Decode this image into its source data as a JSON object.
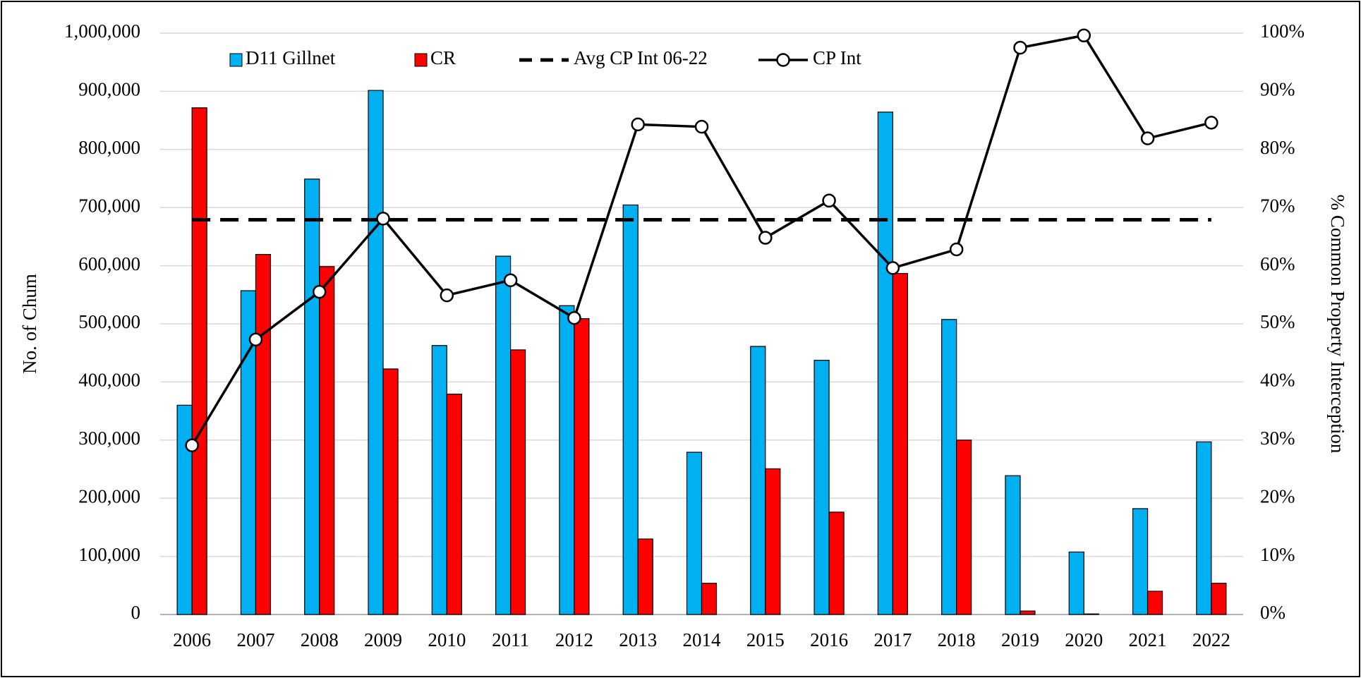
{
  "chart_data": {
    "type": "bar_line",
    "categories": [
      "2006",
      "2007",
      "2008",
      "2009",
      "2010",
      "2011",
      "2012",
      "2013",
      "2014",
      "2015",
      "2016",
      "2017",
      "2018",
      "2019",
      "2020",
      "2021",
      "2022"
    ],
    "ylabel": "No. of Chum",
    "y2label": "% Common Property Interception",
    "ylim": [
      0,
      1000000
    ],
    "yticks": [
      0,
      {
        "value": 100000,
        "label": "100,000"
      },
      {
        "value": 200000,
        "label": "200,000"
      },
      {
        "value": 300000,
        "label": "300,000"
      },
      {
        "value": 400000,
        "label": "400,000"
      },
      {
        "value": 500000,
        "label": "500,000"
      },
      {
        "value": 600000,
        "label": "600,000"
      },
      {
        "value": 700000,
        "label": "700,000"
      },
      {
        "value": 800000,
        "label": "800,000"
      },
      {
        "value": 900000,
        "label": "900,000"
      },
      {
        "value": 1000000,
        "label": "1,000,000"
      }
    ],
    "y2lim": [
      0,
      100
    ],
    "y2ticks": [
      {
        "value": 0,
        "label": "0%"
      },
      {
        "value": 10,
        "label": "10%"
      },
      {
        "value": 20,
        "label": "20%"
      },
      {
        "value": 30,
        "label": "30%"
      },
      {
        "value": 40,
        "label": "40%"
      },
      {
        "value": 50,
        "label": "50%"
      },
      {
        "value": 60,
        "label": "60%"
      },
      {
        "value": 70,
        "label": "70%"
      },
      {
        "value": 80,
        "label": "80%"
      },
      {
        "value": 90,
        "label": "90%"
      },
      {
        "value": 100,
        "label": "100%"
      }
    ],
    "grid": true,
    "series": [
      {
        "name": "D11 Gillnet",
        "kind": "bar",
        "color": "#00b0f0",
        "values": [
          360000,
          557000,
          749000,
          901500,
          462700,
          616400,
          531300,
          704500,
          279100,
          461200,
          437300,
          864200,
          507500,
          238800,
          107500,
          182100,
          297000
        ]
      },
      {
        "name": "CR",
        "kind": "bar",
        "color": "#ff0000",
        "values": [
          871600,
          619400,
          598500,
          422400,
          379100,
          455200,
          509000,
          129900,
          53700,
          250700,
          176100,
          586600,
          300000,
          6000,
          1000,
          40000,
          53700
        ]
      },
      {
        "name": "Avg CP Int 06-22",
        "kind": "dashed",
        "axis": "y2",
        "color": "#000000",
        "values": [
          67.9,
          67.9,
          67.9,
          67.9,
          67.9,
          67.9,
          67.9,
          67.9,
          67.9,
          67.9,
          67.9,
          67.9,
          67.9,
          67.9,
          67.9,
          67.9,
          67.9
        ]
      },
      {
        "name": "CP Int",
        "kind": "line",
        "axis": "y2",
        "color": "#000000",
        "values": [
          29.1,
          47.3,
          55.5,
          68.1,
          54.9,
          57.5,
          51.0,
          84.3,
          83.9,
          64.8,
          71.2,
          59.6,
          62.8,
          97.5,
          99.6,
          81.9,
          84.6
        ]
      }
    ]
  }
}
